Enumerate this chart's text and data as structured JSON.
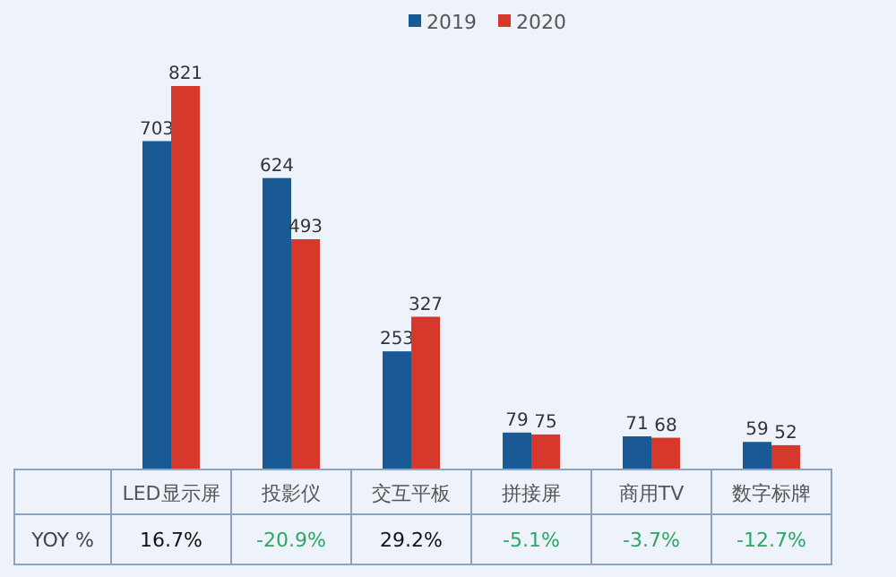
{
  "chart_data": {
    "type": "bar",
    "categories": [
      "LED显示屏",
      "投影仪",
      "交互平板",
      "拼接屏",
      "商用TV",
      "数字标牌"
    ],
    "series": [
      {
        "name": "2019",
        "color": "#1a5a94",
        "values": [
          703,
          624,
          253,
          79,
          71,
          59
        ]
      },
      {
        "name": "2020",
        "color": "#d6392b",
        "values": [
          821,
          493,
          327,
          75,
          68,
          52
        ]
      }
    ],
    "data_labels": true,
    "legend": "top",
    "annotations": [
      "YOY %",
      "16.7%",
      "-20.9%",
      "29.2%",
      "-5.1%",
      "-3.7%",
      "-12.7%"
    ]
  }
}
